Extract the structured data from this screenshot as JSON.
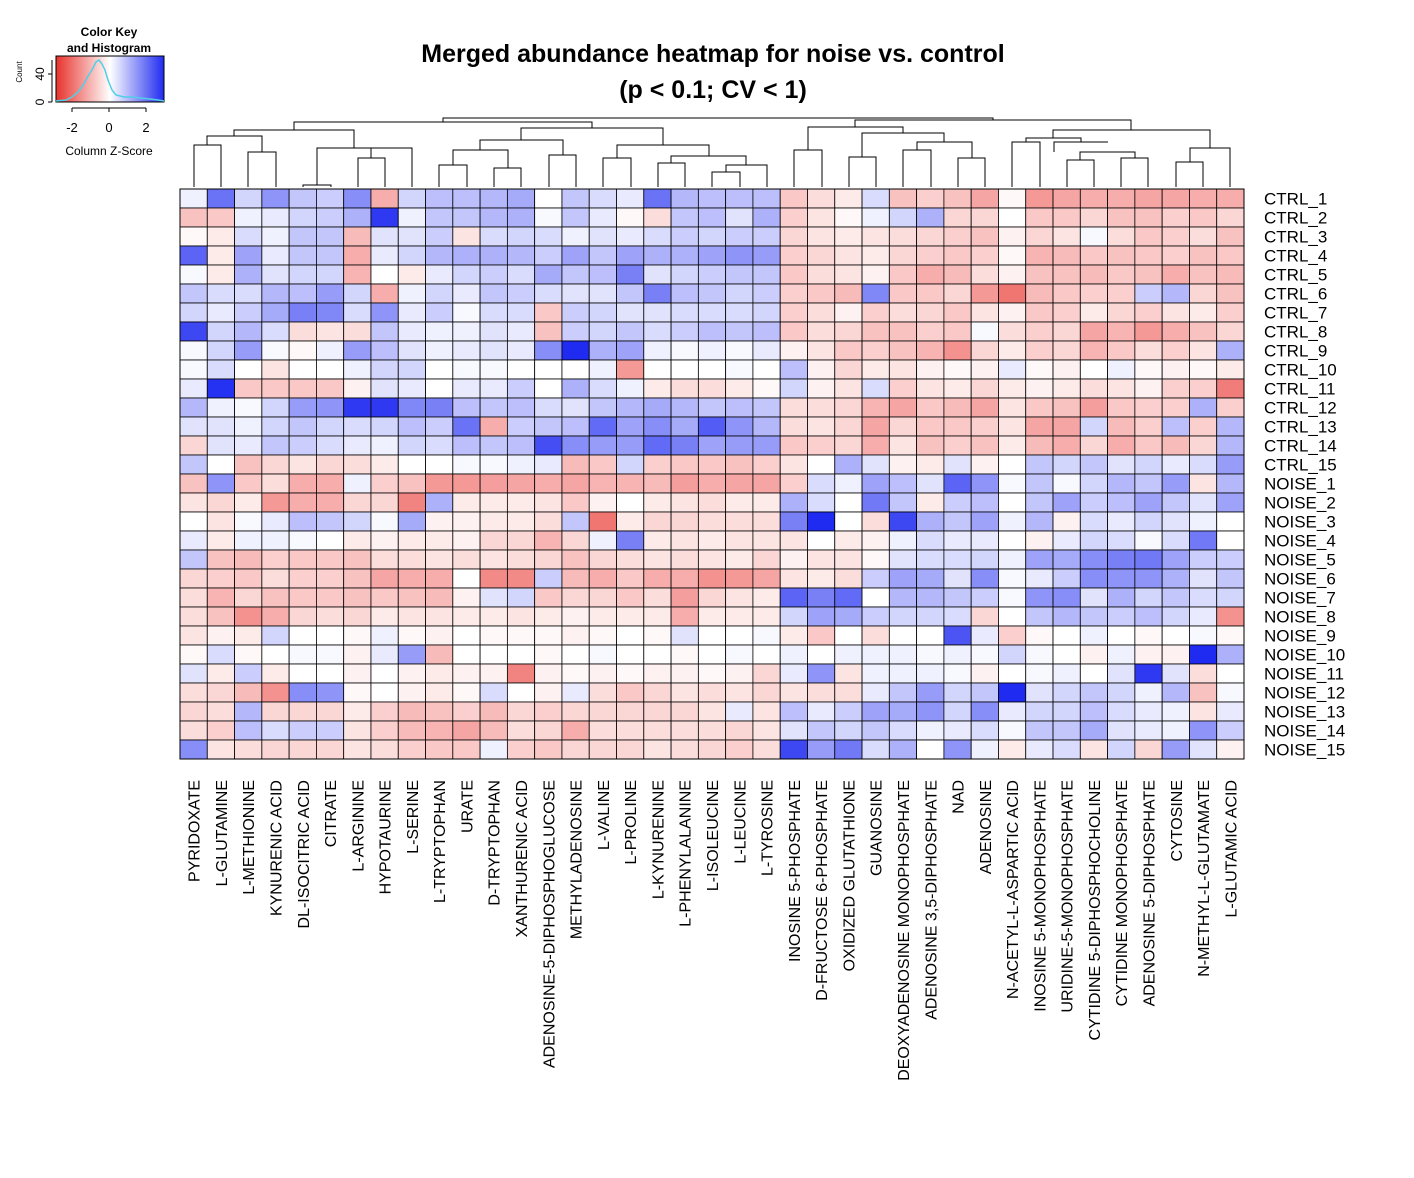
{
  "title": {
    "line1": "Merged abundance heatmap for noise vs. control",
    "line2": "(p < 0.1; CV < 1)"
  },
  "color_key": {
    "title_line1": "Color Key",
    "title_line2": "and Histogram",
    "x_label": "Column Z-Score",
    "y_label": "Count",
    "x_ticks": [
      "-2",
      "0",
      "2"
    ],
    "y_ticks": [
      "0",
      "40"
    ],
    "colors": {
      "low": "#e8322c",
      "mid": "#ffffff",
      "high": "#1f2bf0",
      "histogram": "#4fd0e6"
    }
  },
  "chart_data": {
    "type": "heatmap",
    "value_label": "Column Z-Score",
    "value_range": [
      -3,
      3
    ],
    "rows": [
      "CTRL_1",
      "CTRL_2",
      "CTRL_3",
      "CTRL_4",
      "CTRL_5",
      "CTRL_6",
      "CTRL_7",
      "CTRL_8",
      "CTRL_9",
      "CTRL_10",
      "CTRL_11",
      "CTRL_12",
      "CTRL_13",
      "CTRL_14",
      "CTRL_15",
      "NOISE_1",
      "NOISE_2",
      "NOISE_3",
      "NOISE_4",
      "NOISE_5",
      "NOISE_6",
      "NOISE_7",
      "NOISE_8",
      "NOISE_9",
      "NOISE_10",
      "NOISE_11",
      "NOISE_12",
      "NOISE_13",
      "NOISE_14",
      "NOISE_15"
    ],
    "columns": [
      "PYRIDOXATE",
      "L-GLUTAMINE",
      "L-METHIONINE",
      "KYNURENIC ACID",
      "DL-ISOCITRIC ACID",
      "CITRATE",
      "L-ARGININE",
      "HYPOTAURINE",
      "L-SERINE",
      "L-TRYPTOPHAN",
      "URATE",
      "D-TRYPTOPHAN",
      "XANTHURENIC ACID",
      "ADENOSINE-5-DIPHOSPHOGLUCOSE",
      "METHYLADENOSINE",
      "L-VALINE",
      "L-PROLINE",
      "L-KYNURENINE",
      "L-PHENYLALANINE",
      "L-ISOLEUCINE",
      "L-LEUCINE",
      "L-TYROSINE",
      "INOSINE 5-PHOSPHATE",
      "D-FRUCTOSE 6-PHOSPHATE",
      "OXIDIZED GLUTATHIONE",
      "GUANOSINE",
      "DEOXYADENOSINE MONOPHOSPHATE",
      "ADENOSINE 3,5-DIPHOSPHATE",
      "NAD",
      "ADENOSINE",
      "N-ACETYL-L-ASPARTIC ACID",
      "INOSINE 5-MONOPHOSPHATE",
      "URIDINE-5-MONOPHOSPHATE",
      "CYTIDINE 5-DIPHOSPHOCHOLINE",
      "CYTIDINE MONOPHOSPHATE",
      "ADENOSINE 5-DIPHOSPHATE",
      "CYTOSINE",
      "N-METHYL-L-GLUTAMATE",
      "L-GLUTAMIC ACID"
    ],
    "values": [
      [
        0.2,
        2.0,
        0.6,
        1.5,
        0.8,
        0.7,
        1.6,
        -1.2,
        0.6,
        0.9,
        0.9,
        1.0,
        1.2,
        0.0,
        0.8,
        0.5,
        0.3,
        2.0,
        1.0,
        0.9,
        0.9,
        0.9,
        -0.8,
        -0.5,
        -0.3,
        0.5,
        -0.9,
        -0.7,
        -0.9,
        -1.3,
        -0.1,
        -1.5,
        -1.3,
        -1.2,
        -1.2,
        -1.3,
        -1.3,
        -1.2,
        -1.2
      ],
      [
        -0.9,
        -0.8,
        0.2,
        0.3,
        0.6,
        0.7,
        1.1,
        2.8,
        0.2,
        0.8,
        0.8,
        1.0,
        1.1,
        0.1,
        0.8,
        0.3,
        -0.1,
        -0.5,
        0.8,
        0.9,
        0.4,
        1.1,
        -0.7,
        -0.4,
        -0.1,
        0.2,
        0.6,
        1.1,
        -0.6,
        -0.6,
        0.0,
        -0.8,
        -0.8,
        -0.6,
        -0.9,
        -0.9,
        -0.7,
        -0.8,
        -0.6
      ],
      [
        -0.1,
        -0.3,
        0.5,
        0.2,
        0.8,
        0.8,
        -1.0,
        0.4,
        0.4,
        0.7,
        -0.4,
        0.5,
        0.6,
        0.5,
        0.2,
        0.4,
        0.3,
        0.5,
        0.7,
        0.6,
        0.7,
        0.7,
        -0.6,
        -0.4,
        -0.3,
        -0.4,
        -0.5,
        -0.6,
        -0.7,
        -0.9,
        -0.2,
        -0.6,
        -0.4,
        0.1,
        -0.5,
        -0.8,
        -0.7,
        -0.5,
        -0.9
      ],
      [
        2.2,
        -0.3,
        1.3,
        0.3,
        0.8,
        0.8,
        -1.2,
        0.3,
        0.6,
        1.0,
        1.1,
        1.1,
        1.0,
        0.7,
        1.3,
        0.8,
        1.3,
        1.1,
        1.1,
        1.3,
        1.5,
        1.4,
        -0.7,
        -0.6,
        -0.4,
        -0.3,
        -0.6,
        -0.7,
        -0.8,
        -0.7,
        -0.1,
        -1.1,
        -1.0,
        -0.8,
        -0.9,
        -0.8,
        -0.7,
        -0.9,
        -0.8
      ],
      [
        0.1,
        -0.3,
        1.1,
        0.4,
        0.6,
        0.6,
        -1.1,
        0.0,
        -0.3,
        0.3,
        0.6,
        0.7,
        0.5,
        1.2,
        0.8,
        0.9,
        1.8,
        0.4,
        0.6,
        0.7,
        0.8,
        0.8,
        -0.8,
        -0.5,
        -0.4,
        -0.2,
        -0.8,
        -1.2,
        -1.0,
        -0.5,
        -0.2,
        -0.9,
        -0.9,
        -1.0,
        -0.8,
        -0.9,
        -1.2,
        -0.9,
        -1.0
      ],
      [
        0.8,
        0.5,
        0.5,
        1.0,
        0.9,
        1.4,
        0.6,
        -1.2,
        0.2,
        0.6,
        0.3,
        0.8,
        0.7,
        0.5,
        0.4,
        0.4,
        0.8,
        1.8,
        0.9,
        0.8,
        0.6,
        0.7,
        -0.7,
        -0.8,
        -1.0,
        1.7,
        -0.8,
        -0.8,
        -0.6,
        -1.5,
        -2.0,
        -1.0,
        -0.8,
        -0.7,
        -0.7,
        0.7,
        1.0,
        -0.6,
        -0.9
      ],
      [
        0.6,
        0.3,
        0.7,
        1.2,
        1.8,
        1.7,
        0.5,
        1.5,
        0.3,
        0.7,
        0.1,
        0.5,
        0.5,
        -0.8,
        0.7,
        0.6,
        0.4,
        0.4,
        0.5,
        0.5,
        0.5,
        0.6,
        -0.7,
        -0.5,
        -0.2,
        -0.7,
        -0.5,
        -0.6,
        -0.8,
        -0.4,
        -0.2,
        -0.8,
        -0.7,
        -0.3,
        -0.6,
        -0.7,
        -0.4,
        -0.3,
        -0.7
      ],
      [
        2.6,
        0.6,
        1.0,
        0.5,
        -0.5,
        -0.4,
        -0.5,
        0.8,
        0.3,
        0.2,
        0.2,
        0.4,
        0.3,
        -0.9,
        0.7,
        0.6,
        0.8,
        0.5,
        0.7,
        0.9,
        0.8,
        0.9,
        -0.8,
        -0.5,
        -0.6,
        -0.9,
        -0.9,
        -0.7,
        -0.8,
        0.1,
        -0.5,
        -0.7,
        -0.6,
        -1.3,
        -1.1,
        -1.5,
        -1.2,
        -0.9,
        -0.6
      ],
      [
        0.1,
        0.6,
        1.4,
        0.1,
        -0.1,
        0.2,
        1.4,
        0.9,
        0.4,
        0.2,
        0.3,
        0.4,
        0.3,
        1.6,
        3.0,
        1.1,
        1.3,
        0.2,
        0.1,
        0.2,
        0.1,
        0.3,
        -0.2,
        -0.4,
        -0.8,
        -0.7,
        -0.9,
        -1.1,
        -1.6,
        -0.6,
        -0.3,
        -0.7,
        -0.6,
        -1.1,
        -0.8,
        -0.5,
        -0.7,
        -0.4,
        1.1
      ],
      [
        0.1,
        0.5,
        0.0,
        -0.4,
        0.0,
        0.0,
        0.2,
        0.6,
        0.6,
        0.0,
        0.1,
        0.1,
        0.0,
        0.0,
        0.0,
        0.2,
        -1.5,
        0.0,
        0.0,
        0.0,
        0.1,
        0.0,
        0.9,
        -0.2,
        -0.6,
        -0.3,
        -0.4,
        -0.2,
        -0.1,
        -0.2,
        0.3,
        -0.1,
        -0.2,
        0.0,
        0.2,
        -0.1,
        -0.2,
        -0.1,
        -0.3
      ],
      [
        0.3,
        2.9,
        -0.8,
        -0.8,
        -0.8,
        -0.8,
        -0.2,
        0.4,
        0.3,
        0.0,
        0.3,
        0.3,
        0.7,
        0.0,
        1.1,
        0.5,
        0.2,
        -0.3,
        -0.5,
        -0.5,
        -0.3,
        -0.1,
        0.6,
        -0.2,
        -0.4,
        0.5,
        -0.7,
        -0.4,
        -0.3,
        -0.6,
        -0.3,
        -0.2,
        -0.3,
        -0.5,
        -0.4,
        -0.2,
        -0.7,
        -0.7,
        -1.9
      ],
      [
        1.0,
        0.2,
        0.1,
        0.6,
        1.4,
        1.5,
        2.8,
        2.8,
        1.7,
        1.8,
        0.9,
        0.8,
        0.9,
        0.5,
        0.4,
        0.8,
        1.0,
        1.2,
        1.0,
        0.8,
        0.9,
        0.8,
        -0.5,
        -0.5,
        -0.6,
        -1.1,
        -1.3,
        -0.8,
        -1.0,
        -1.3,
        -0.4,
        -0.8,
        -0.9,
        -1.4,
        -0.8,
        -0.7,
        -0.7,
        1.1,
        -0.7
      ],
      [
        0.4,
        0.4,
        0.2,
        0.6,
        0.8,
        0.6,
        0.5,
        0.6,
        0.9,
        0.7,
        2.0,
        -1.2,
        0.7,
        0.8,
        0.9,
        2.1,
        1.3,
        1.6,
        1.2,
        2.3,
        1.5,
        1.0,
        -0.5,
        -0.4,
        -0.6,
        -1.3,
        -0.6,
        -0.8,
        -0.8,
        -0.7,
        -0.4,
        -1.3,
        -1.3,
        0.6,
        -1.0,
        -0.7,
        0.9,
        -0.7,
        1.0
      ],
      [
        -0.6,
        0.4,
        0.3,
        0.8,
        0.7,
        0.5,
        0.3,
        0.2,
        0.6,
        0.5,
        0.9,
        0.8,
        0.9,
        2.5,
        1.6,
        1.4,
        1.4,
        2.1,
        1.8,
        1.3,
        1.4,
        1.4,
        -0.8,
        -0.7,
        -0.6,
        -1.2,
        -0.4,
        -0.9,
        -0.7,
        -0.9,
        -0.3,
        -1.0,
        -1.2,
        -0.6,
        -1.2,
        -0.8,
        -1.0,
        -0.6,
        1.0
      ],
      [
        0.8,
        0.0,
        -0.9,
        -0.6,
        -0.4,
        -0.6,
        -0.5,
        -0.3,
        0.0,
        0.0,
        0.1,
        0.1,
        0.2,
        0.3,
        -1.0,
        -0.8,
        0.6,
        -0.7,
        -0.8,
        -0.8,
        -0.9,
        -0.7,
        -0.4,
        0.0,
        1.1,
        0.4,
        -0.2,
        -0.3,
        0.4,
        -0.2,
        0.0,
        0.8,
        0.6,
        0.8,
        0.4,
        0.6,
        0.3,
        0.5,
        1.4
      ],
      [
        -0.9,
        1.5,
        -0.8,
        -0.5,
        -1.2,
        -1.2,
        0.2,
        -0.7,
        -0.9,
        -1.5,
        -1.5,
        -1.4,
        -1.3,
        -1.2,
        -1.3,
        -1.1,
        -1.1,
        -1.0,
        -1.4,
        -1.2,
        -1.3,
        -1.3,
        -0.7,
        0.5,
        0.2,
        1.3,
        0.9,
        0.4,
        2.2,
        1.5,
        0.1,
        0.8,
        0.1,
        0.6,
        1.0,
        0.8,
        1.4,
        -0.4,
        1.0
      ],
      [
        -0.4,
        -0.6,
        -0.3,
        -1.5,
        -1.2,
        -1.2,
        -0.6,
        -0.6,
        -1.8,
        1.1,
        -0.3,
        -0.3,
        -0.3,
        -0.4,
        -0.8,
        -0.2,
        0.0,
        -0.3,
        -0.4,
        -0.5,
        -0.3,
        -0.3,
        1.1,
        0.5,
        0.0,
        1.9,
        0.8,
        -0.3,
        0.7,
        0.9,
        0.0,
        0.8,
        1.3,
        0.7,
        0.9,
        1.3,
        0.8,
        0.4,
        1.3
      ],
      [
        0.0,
        -0.4,
        0.1,
        0.3,
        0.9,
        0.8,
        0.6,
        0.1,
        1.2,
        -0.2,
        -0.2,
        -0.3,
        -0.3,
        -0.5,
        0.8,
        -2.0,
        -0.3,
        -0.6,
        -0.6,
        -0.5,
        -0.5,
        -0.5,
        1.8,
        3.0,
        0.0,
        -0.5,
        2.6,
        1.1,
        0.8,
        1.3,
        0.2,
        1.0,
        -0.2,
        0.5,
        0.3,
        0.6,
        0.4,
        0.2,
        0.0
      ],
      [
        0.3,
        -0.3,
        0.2,
        0.2,
        0.1,
        0.0,
        -0.3,
        -0.2,
        -0.3,
        -0.3,
        -0.2,
        -0.6,
        -0.6,
        -1.1,
        -0.6,
        0.2,
        1.8,
        -0.3,
        -0.4,
        -0.3,
        -0.4,
        -0.4,
        -0.4,
        0.0,
        -0.3,
        -0.2,
        0.2,
        0.5,
        0.3,
        0.3,
        0.0,
        -0.2,
        0.3,
        0.6,
        0.5,
        0.1,
        0.5,
        1.9,
        0.0
      ],
      [
        0.8,
        -0.9,
        -1.0,
        -0.7,
        -0.8,
        -0.8,
        -0.9,
        -0.5,
        -0.5,
        -0.4,
        -0.5,
        -0.4,
        -0.5,
        -0.6,
        -0.9,
        -0.6,
        -0.5,
        -0.4,
        -0.5,
        -0.4,
        -0.3,
        -0.6,
        -0.2,
        -0.4,
        -0.4,
        -0.1,
        0.4,
        0.5,
        0.5,
        0.6,
        0.2,
        1.3,
        1.2,
        1.6,
        1.8,
        1.9,
        1.3,
        0.7,
        0.7
      ],
      [
        -0.6,
        -0.7,
        -0.8,
        -0.5,
        -0.7,
        -0.7,
        -0.9,
        -1.3,
        -1.2,
        -1.2,
        0.0,
        -1.7,
        -1.7,
        0.7,
        -1.0,
        -1.2,
        -0.8,
        -1.2,
        -1.2,
        -1.6,
        -1.5,
        -1.3,
        -0.4,
        -0.3,
        -0.5,
        0.7,
        1.3,
        1.2,
        0.4,
        1.6,
        0.1,
        0.3,
        0.7,
        1.6,
        1.5,
        1.5,
        1.1,
        0.4,
        0.8
      ],
      [
        -0.5,
        -1.1,
        -0.6,
        -0.9,
        -0.8,
        -0.8,
        -0.9,
        -0.8,
        -0.9,
        -1.0,
        -0.2,
        0.4,
        0.6,
        -0.8,
        -0.6,
        -0.6,
        -0.8,
        -0.5,
        -1.4,
        -0.6,
        -0.4,
        -0.3,
        2.2,
        1.8,
        2.1,
        0.0,
        1.0,
        1.0,
        0.8,
        0.7,
        0.1,
        1.5,
        1.6,
        0.4,
        1.1,
        0.6,
        0.8,
        0.5,
        0.6
      ],
      [
        -0.5,
        -0.9,
        -1.6,
        -1.2,
        -0.6,
        -0.5,
        -0.6,
        -0.3,
        -0.4,
        -0.4,
        -0.3,
        -0.3,
        -0.4,
        -0.3,
        -0.2,
        -0.3,
        -0.3,
        -0.3,
        -1.2,
        -0.3,
        -0.3,
        -0.3,
        0.6,
        1.3,
        1.2,
        0.7,
        0.6,
        0.6,
        0.5,
        -0.6,
        0.0,
        0.8,
        1.0,
        0.8,
        0.7,
        0.9,
        0.6,
        0.3,
        -1.6
      ],
      [
        -0.4,
        -0.2,
        -0.3,
        0.6,
        0.0,
        0.0,
        -0.1,
        0.2,
        -0.1,
        -0.2,
        0.0,
        -0.1,
        -0.1,
        -0.1,
        -0.2,
        -0.1,
        0.0,
        -0.1,
        0.4,
        0.0,
        0.0,
        0.1,
        -0.3,
        -0.8,
        0.0,
        -0.5,
        0.0,
        0.0,
        2.4,
        0.3,
        -0.7,
        -0.1,
        0.0,
        0.2,
        0.0,
        -0.1,
        0.0,
        0.1,
        -0.1
      ],
      [
        -0.1,
        0.5,
        -0.1,
        0.0,
        0.1,
        0.1,
        -0.2,
        0.3,
        1.4,
        -1.0,
        0.0,
        0.0,
        0.0,
        -0.1,
        0.0,
        0.1,
        0.0,
        0.0,
        -0.1,
        0.0,
        0.1,
        0.0,
        0.2,
        0.0,
        0.2,
        0.2,
        0.2,
        0.1,
        0.2,
        0.1,
        0.6,
        0.1,
        0.0,
        -0.2,
        0.2,
        -0.2,
        -0.2,
        3.0,
        1.1
      ],
      [
        0.4,
        -0.3,
        0.7,
        -0.3,
        0.0,
        0.0,
        -0.2,
        0.0,
        -0.2,
        -0.3,
        -0.2,
        -0.2,
        -1.8,
        -0.2,
        -0.1,
        -0.2,
        -0.1,
        -0.2,
        -0.2,
        -0.1,
        -0.2,
        -0.6,
        0.3,
        1.5,
        -0.4,
        0.2,
        0.2,
        0.2,
        0.1,
        -0.2,
        0.0,
        0.1,
        0.2,
        0.0,
        0.4,
        2.8,
        0.4,
        -0.5,
        0.0
      ],
      [
        -0.5,
        -0.6,
        -1.0,
        -1.6,
        1.6,
        1.5,
        -0.1,
        0.0,
        -0.2,
        -0.3,
        -0.1,
        0.5,
        0.0,
        -0.2,
        0.3,
        -0.5,
        -0.8,
        -0.6,
        -0.4,
        -0.5,
        -0.4,
        -0.6,
        -0.4,
        -0.5,
        -0.5,
        0.3,
        0.8,
        1.4,
        0.6,
        0.8,
        3.0,
        0.4,
        0.6,
        0.8,
        0.6,
        0.2,
        1.0,
        -0.9,
        0.1
      ],
      [
        -0.6,
        -0.5,
        1.0,
        -0.6,
        -0.6,
        -0.6,
        -0.3,
        -0.7,
        -1.0,
        -0.9,
        -0.7,
        -1.0,
        -0.6,
        -0.7,
        -0.6,
        -0.6,
        -0.6,
        -0.6,
        -0.6,
        -0.4,
        0.3,
        -0.4,
        0.9,
        0.3,
        0.7,
        1.3,
        1.2,
        1.5,
        0.6,
        1.6,
        0.3,
        0.6,
        0.6,
        0.9,
        0.5,
        0.3,
        0.2,
        -0.4,
        0.3
      ],
      [
        -0.5,
        -0.7,
        0.9,
        0.5,
        0.7,
        0.7,
        -0.4,
        -0.7,
        -1.0,
        -1.1,
        -1.3,
        -1.0,
        -0.5,
        -0.6,
        -1.2,
        -0.5,
        -0.5,
        -0.5,
        -0.5,
        -0.5,
        -0.6,
        -0.4,
        0.4,
        0.8,
        0.6,
        0.8,
        0.5,
        0.2,
        0.3,
        0.5,
        0.1,
        0.8,
        0.8,
        1.2,
        0.4,
        0.3,
        0.2,
        1.5,
        0.7
      ],
      [
        1.6,
        -0.4,
        -0.5,
        -0.6,
        -0.6,
        -0.6,
        -0.4,
        -0.5,
        -0.7,
        -0.8,
        -0.8,
        0.2,
        -0.7,
        -0.8,
        -0.6,
        -0.6,
        -0.6,
        -0.4,
        -0.5,
        -0.6,
        -0.7,
        -0.5,
        2.6,
        1.4,
        1.9,
        0.5,
        1.1,
        0.0,
        1.5,
        0.2,
        -0.3,
        0.3,
        0.5,
        -0.4,
        0.6,
        -0.6,
        1.4,
        0.4,
        -0.2
      ]
    ]
  }
}
